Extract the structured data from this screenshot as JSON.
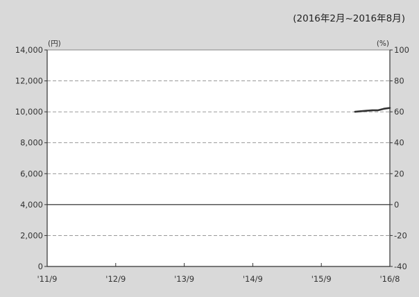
{
  "period_label": "(2016年2月~2016年8月)",
  "chart_data": {
    "type": "line",
    "title": "",
    "x_categories": [
      "'11/9",
      "'12/9",
      "'13/9",
      "'14/9",
      "'15/9",
      "'16/8"
    ],
    "y_left": {
      "unit": "(円)",
      "ylim": [
        0,
        14000
      ],
      "ticks": [
        0,
        2000,
        4000,
        6000,
        8000,
        10000,
        12000,
        14000
      ],
      "tick_labels": [
        "0",
        "2,000",
        "4,000",
        "6,000",
        "8,000",
        "10,000",
        "12,000",
        "14,000"
      ]
    },
    "y_right": {
      "unit": "(%)",
      "ylim": [
        -40,
        100
      ],
      "ticks": [
        -40,
        -20,
        0,
        20,
        40,
        60,
        80,
        100
      ],
      "tick_labels": [
        "-40",
        "-20",
        "0",
        "20",
        "40",
        "60",
        "80",
        "100"
      ]
    },
    "grid": "dashed horizontal",
    "series": [
      {
        "axis": "left",
        "color": "#333333",
        "points": [
          {
            "x": "2016-02",
            "y": 10000
          },
          {
            "x": "2016-03",
            "y": 10040
          },
          {
            "x": "2016-04",
            "y": 10070
          },
          {
            "x": "2016-05",
            "y": 10100
          },
          {
            "x": "2016-06",
            "y": 10100
          },
          {
            "x": "2016-07",
            "y": 10200
          },
          {
            "x": "2016-08",
            "y": 10250
          }
        ]
      }
    ]
  }
}
